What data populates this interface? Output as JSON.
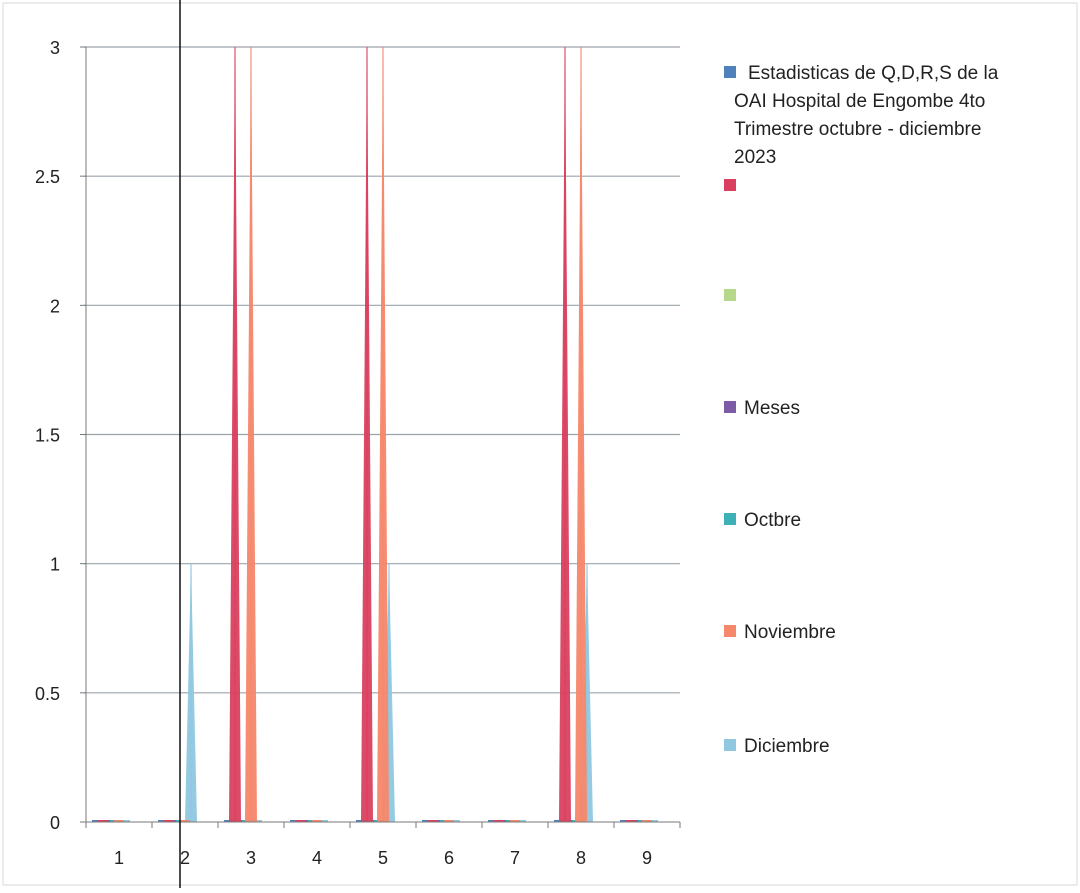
{
  "chart_data": {
    "type": "area",
    "categories": [
      "1",
      "2",
      "3",
      "4",
      "5",
      "6",
      "7",
      "8",
      "9"
    ],
    "ylim": [
      0,
      3
    ],
    "yticks": [
      "0",
      "0.5",
      "1",
      "1.5",
      "2",
      "2.5",
      "3"
    ],
    "grid": true,
    "legend_position": "right",
    "series": [
      {
        "name": "Estadisticas de Q,D,R,S de la OAI Hospital de Engombe  4to Trimestre octubre -  diciembre 2023",
        "color": "#4F81BD",
        "values": [
          0,
          0,
          0,
          0,
          0,
          0,
          0,
          0,
          0
        ]
      },
      {
        "name": "",
        "color": "#D9405F",
        "values": [
          0,
          0,
          3,
          0,
          3,
          0,
          0,
          3,
          0
        ]
      },
      {
        "name": "",
        "color": "#B5D88A",
        "values": [
          0,
          0,
          0,
          0,
          0,
          0,
          0,
          0,
          0
        ]
      },
      {
        "name": "Meses",
        "color": "#7D5BA6",
        "values": [
          0,
          0,
          0,
          0,
          0,
          0,
          0,
          0,
          0
        ]
      },
      {
        "name": "Octbre",
        "color": "#3DB0B8",
        "values": [
          0,
          0,
          0,
          0,
          0,
          0,
          0,
          0,
          0
        ]
      },
      {
        "name": "Noviembre",
        "color": "#F5876A",
        "values": [
          0,
          0,
          3,
          0,
          3,
          0,
          0,
          3,
          0
        ]
      },
      {
        "name": "Diciembre",
        "color": "#8FC8E0",
        "values": [
          0,
          1,
          0,
          0,
          1,
          0,
          0,
          1,
          0
        ]
      }
    ]
  },
  "legend": {
    "items": [
      {
        "lines": [
          "Estadisticas de Q,D,R,S de la",
          "OAI Hospital de Engombe  4to",
          "Trimestre octubre -  diciembre",
          "2023"
        ],
        "color": "#4F81BD"
      },
      {
        "lines": [],
        "color": "#D9405F"
      },
      {
        "lines": [],
        "color": "#B5D88A"
      },
      {
        "lines": [
          "Meses"
        ],
        "color": "#7D5BA6"
      },
      {
        "lines": [
          "Octbre"
        ],
        "color": "#3DB0B8"
      },
      {
        "lines": [
          "Noviembre"
        ],
        "color": "#F5876A"
      },
      {
        "lines": [
          "Diciembre"
        ],
        "color": "#8FC8E0"
      }
    ]
  }
}
